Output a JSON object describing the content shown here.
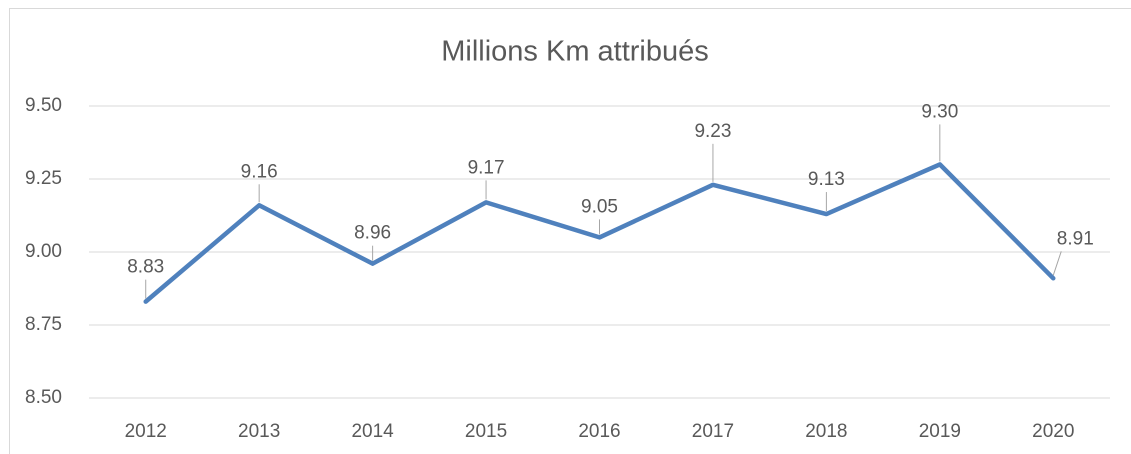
{
  "chart_data": {
    "type": "line",
    "title": "Millions Km attribués",
    "categories": [
      "2012",
      "2013",
      "2014",
      "2015",
      "2016",
      "2017",
      "2018",
      "2019",
      "2020"
    ],
    "series": [
      {
        "name": "Millions Km attribués",
        "color": "#4f81bd",
        "values": [
          8.83,
          9.16,
          8.96,
          9.17,
          9.05,
          9.23,
          9.13,
          9.3,
          8.91
        ],
        "value_labels": [
          "8.83",
          "9.16",
          "8.96",
          "9.17",
          "9.05",
          "9.23",
          "9.13",
          "9.30",
          "8.91"
        ]
      }
    ],
    "ylim": [
      8.5,
      9.5
    ],
    "yticks": [
      {
        "value": 8.5,
        "label": "8.50"
      },
      {
        "value": 8.75,
        "label": "8.75"
      },
      {
        "value": 9.0,
        "label": "9.00"
      },
      {
        "value": 9.25,
        "label": "9.25"
      },
      {
        "value": 9.5,
        "label": "9.50"
      }
    ],
    "grid": true
  }
}
